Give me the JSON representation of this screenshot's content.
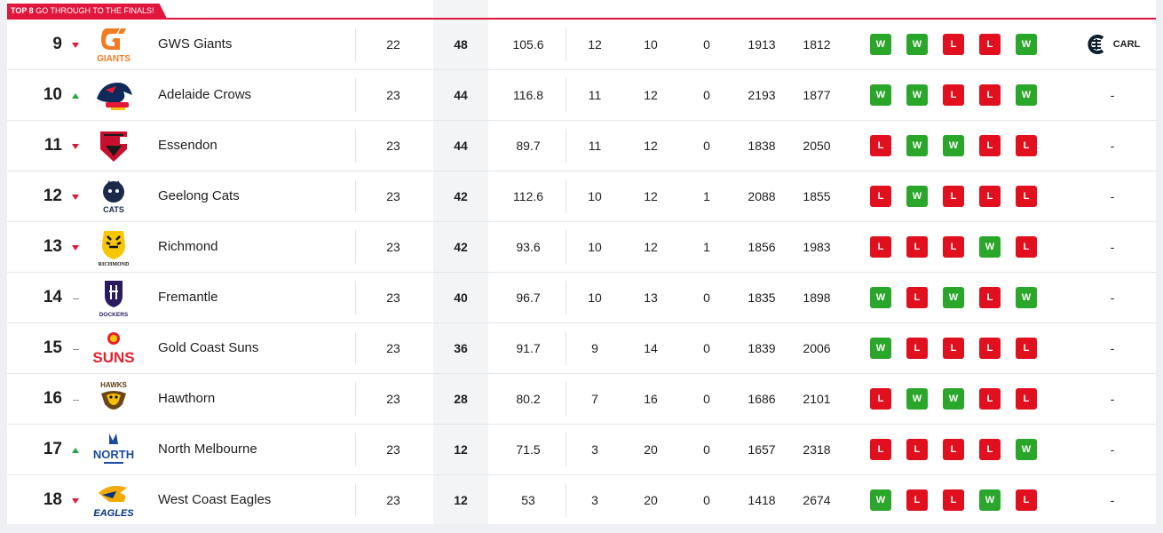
{
  "banner": {
    "strong": "TOP 8",
    "rest": " GO THROUGH TO THE FINALS!"
  },
  "colors": {
    "accent": "#e1163c",
    "win": "#2aa72a",
    "loss": "#e0101e",
    "up": "#1fa84a",
    "down": "#e1163c"
  },
  "rows": [
    {
      "pos": "9",
      "move": "down",
      "logo": "giants-logo",
      "logo_text": "GIANTS",
      "team": "GWS Giants",
      "p": "22",
      "pts": "48",
      "pct": "105.6",
      "w": "12",
      "l": "10",
      "d": "0",
      "f": "1913",
      "a": "1812",
      "form": [
        "W",
        "W",
        "L",
        "L",
        "W"
      ],
      "next": "CARL",
      "next_icon": "carlton-logo"
    },
    {
      "pos": "10",
      "move": "up",
      "logo": "crows-logo",
      "logo_text": "",
      "team": "Adelaide Crows",
      "p": "23",
      "pts": "44",
      "pct": "116.8",
      "w": "11",
      "l": "12",
      "d": "0",
      "f": "2193",
      "a": "1877",
      "form": [
        "W",
        "W",
        "L",
        "L",
        "W"
      ],
      "next": "-"
    },
    {
      "pos": "11",
      "move": "down",
      "logo": "bombers-logo",
      "logo_text": "",
      "team": "Essendon",
      "p": "23",
      "pts": "44",
      "pct": "89.7",
      "w": "11",
      "l": "12",
      "d": "0",
      "f": "1838",
      "a": "2050",
      "form": [
        "L",
        "W",
        "W",
        "L",
        "L"
      ],
      "next": "-"
    },
    {
      "pos": "12",
      "move": "down",
      "logo": "cats-logo",
      "logo_text": "CATS",
      "team": "Geelong Cats",
      "p": "23",
      "pts": "42",
      "pct": "112.6",
      "w": "10",
      "l": "12",
      "d": "1",
      "f": "2088",
      "a": "1855",
      "form": [
        "L",
        "W",
        "L",
        "L",
        "L"
      ],
      "next": "-"
    },
    {
      "pos": "13",
      "move": "down",
      "logo": "tigers-logo",
      "logo_text": "RICHMOND",
      "team": "Richmond",
      "p": "23",
      "pts": "42",
      "pct": "93.6",
      "w": "10",
      "l": "12",
      "d": "1",
      "f": "1856",
      "a": "1983",
      "form": [
        "L",
        "L",
        "L",
        "W",
        "L"
      ],
      "next": "-"
    },
    {
      "pos": "14",
      "move": "none",
      "logo": "dockers-logo",
      "logo_text": "DOCKERS",
      "team": "Fremantle",
      "p": "23",
      "pts": "40",
      "pct": "96.7",
      "w": "10",
      "l": "13",
      "d": "0",
      "f": "1835",
      "a": "1898",
      "form": [
        "W",
        "L",
        "W",
        "L",
        "W"
      ],
      "next": "-"
    },
    {
      "pos": "15",
      "move": "none",
      "logo": "suns-logo",
      "logo_text": "SUNS",
      "team": "Gold Coast Suns",
      "p": "23",
      "pts": "36",
      "pct": "91.7",
      "w": "9",
      "l": "14",
      "d": "0",
      "f": "1839",
      "a": "2006",
      "form": [
        "W",
        "L",
        "L",
        "L",
        "L"
      ],
      "next": "-"
    },
    {
      "pos": "16",
      "move": "none",
      "logo": "hawks-logo",
      "logo_text": "HAWKS",
      "team": "Hawthorn",
      "p": "23",
      "pts": "28",
      "pct": "80.2",
      "w": "7",
      "l": "16",
      "d": "0",
      "f": "1686",
      "a": "2101",
      "form": [
        "L",
        "W",
        "W",
        "L",
        "L"
      ],
      "next": "-"
    },
    {
      "pos": "17",
      "move": "up",
      "logo": "kangaroos-logo",
      "logo_text": "NORTH",
      "team": "North Melbourne",
      "p": "23",
      "pts": "12",
      "pct": "71.5",
      "w": "3",
      "l": "20",
      "d": "0",
      "f": "1657",
      "a": "2318",
      "form": [
        "L",
        "L",
        "L",
        "L",
        "W"
      ],
      "next": "-"
    },
    {
      "pos": "18",
      "move": "down",
      "logo": "eagles-logo",
      "logo_text": "EAGLES",
      "team": "West Coast Eagles",
      "p": "23",
      "pts": "12",
      "pct": "53",
      "w": "3",
      "l": "20",
      "d": "0",
      "f": "1418",
      "a": "2674",
      "form": [
        "W",
        "L",
        "L",
        "W",
        "L"
      ],
      "next": "-"
    }
  ]
}
